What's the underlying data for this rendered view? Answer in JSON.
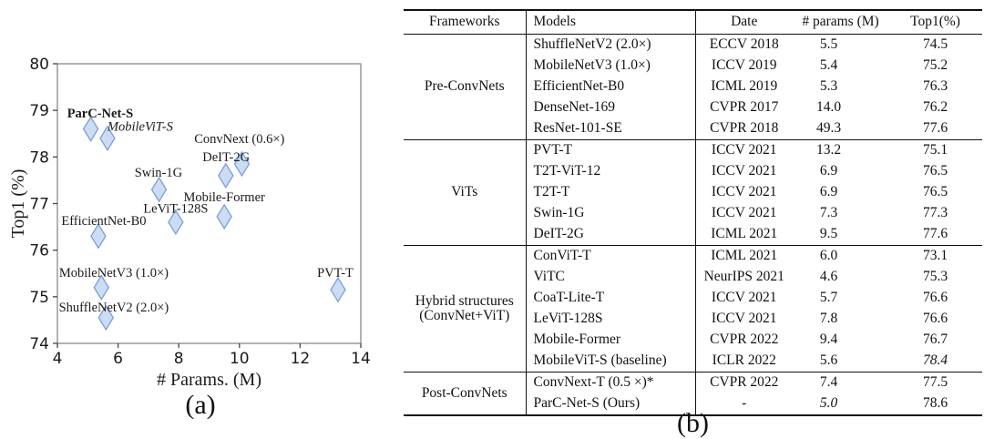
{
  "figure": {
    "caption_a": "(a)",
    "caption_b": "(b)"
  },
  "colors": {
    "marker_fill": "#ccdcf2",
    "marker_stroke": "#7b9fd4",
    "spine": "#8a8a8a",
    "tick": "#444444",
    "text": "#1a1a1a",
    "table_line": "#111111"
  },
  "chart_data": [
    {
      "type": "scatter",
      "title": "",
      "xlabel": "# Params. (M)",
      "ylabel": "Top1 (%)",
      "xlim": [
        4,
        14
      ],
      "ylim": [
        74,
        80
      ],
      "xticks": [
        4,
        6,
        8,
        10,
        12,
        14
      ],
      "yticks": [
        74,
        75,
        76,
        77,
        78,
        79,
        80
      ],
      "grid": false,
      "legend": "none",
      "marker": {
        "shape": "thin-diamond",
        "fill": "#ccdcf2",
        "stroke": "#7b9fd4"
      },
      "points": [
        {
          "label": "ParC-Net-S",
          "x": 5.1,
          "y": 78.6,
          "label_x": 5.41,
          "label_y": 78.94,
          "label_style": "bold"
        },
        {
          "label": "MobileViT-S",
          "x": 5.65,
          "y": 78.4,
          "label_x": 6.73,
          "label_y": 78.66,
          "label_style": "italic"
        },
        {
          "label": "ConvNext (0.6×)",
          "x": 10.08,
          "y": 77.85,
          "label_x": 10.0,
          "label_y": 78.4,
          "label_style": "normal"
        },
        {
          "label": "DeIT-2G",
          "x": 9.55,
          "y": 77.6,
          "label_x": 9.56,
          "label_y": 78.01,
          "label_style": "normal"
        },
        {
          "label": "Swin-1G",
          "x": 7.35,
          "y": 77.3,
          "label_x": 7.33,
          "label_y": 77.67,
          "label_style": "normal"
        },
        {
          "label": "Mobile-Former",
          "x": 9.5,
          "y": 76.72,
          "label_x": 9.5,
          "label_y": 77.15,
          "label_style": "normal"
        },
        {
          "label": "LeViT-128S",
          "x": 7.9,
          "y": 76.6,
          "label_x": 7.9,
          "label_y": 76.9,
          "label_style": "normal"
        },
        {
          "label": "EfficientNet-B0",
          "x": 5.35,
          "y": 76.3,
          "label_x": 5.53,
          "label_y": 76.64,
          "label_style": "normal"
        },
        {
          "label": "MobileNetV3 (1.0×)",
          "x": 5.45,
          "y": 75.2,
          "label_x": 5.86,
          "label_y": 75.52,
          "label_style": "normal"
        },
        {
          "label": "PVT-T",
          "x": 13.25,
          "y": 75.15,
          "label_x": 13.16,
          "label_y": 75.52,
          "label_style": "normal"
        },
        {
          "label": "ShuffleNetV2 (2.0×)",
          "x": 5.6,
          "y": 74.55,
          "label_x": 5.86,
          "label_y": 74.78,
          "label_style": "normal"
        }
      ]
    },
    {
      "type": "table",
      "headers": [
        "Frameworks",
        "Models",
        "Date",
        "# params (M)",
        "Top1(%)"
      ],
      "groups": [
        {
          "framework": [
            "Pre-ConvNets"
          ],
          "rows": [
            {
              "model": "ShuffleNetV2 (2.0×)",
              "date": "ECCV 2018",
              "params": "5.5",
              "top1": "74.5"
            },
            {
              "model": "MobileNetV3 (1.0×)",
              "date": "ICCV 2019",
              "params": "5.4",
              "top1": "75.2"
            },
            {
              "model": "EfficientNet-B0",
              "date": "ICML 2019",
              "params": "5.3",
              "top1": "76.3"
            },
            {
              "model": "DenseNet-169",
              "date": "CVPR 2017",
              "params": "14.0",
              "top1": "76.2"
            },
            {
              "model": "ResNet-101-SE",
              "date": "CVPR 2018",
              "params": "49.3",
              "top1": "77.6"
            }
          ]
        },
        {
          "framework": [
            "ViTs"
          ],
          "rows": [
            {
              "model": "PVT-T",
              "date": "ICCV 2021",
              "params": "13.2",
              "top1": "75.1"
            },
            {
              "model": "T2T-ViT-12",
              "date": "ICCV 2021",
              "params": "6.9",
              "top1": "76.5"
            },
            {
              "model": "T2T-T",
              "date": "ICCV 2021",
              "params": "6.9",
              "top1": "76.5"
            },
            {
              "model": "Swin-1G",
              "date": "ICCV 2021",
              "params": "7.3",
              "top1": "77.3"
            },
            {
              "model": "DeIT-2G",
              "date": "ICML 2021",
              "params": "9.5",
              "top1": "77.6"
            }
          ]
        },
        {
          "framework": [
            "Hybrid structures",
            "(ConvNet+ViT)"
          ],
          "rows": [
            {
              "model": "ConViT-T",
              "date": "ICML 2021",
              "params": "6.0",
              "top1": "73.1"
            },
            {
              "model": "ViTC",
              "date": "NeurIPS 2021",
              "params": "4.6",
              "params_style": "bold",
              "top1": "75.3"
            },
            {
              "model": "CoaT-Lite-T",
              "date": "ICCV 2021",
              "params": "5.7",
              "top1": "76.6"
            },
            {
              "model": "LeViT-128S",
              "date": "ICCV 2021",
              "params": "7.8",
              "top1": "76.6"
            },
            {
              "model": "Mobile-Former",
              "date": "CVPR 2022",
              "params": "9.4",
              "top1": "76.7"
            },
            {
              "model": "MobileViT-S (baseline)",
              "date": "ICLR 2022",
              "params": "5.6",
              "top1": "78.4",
              "top1_style": "italic"
            }
          ]
        },
        {
          "framework": [
            "Post-ConvNets"
          ],
          "rows": [
            {
              "model": "ConvNext-T (0.5 ×)*",
              "date": "CVPR 2022",
              "params": "7.4",
              "top1": "77.5"
            },
            {
              "model": "ParC-Net-S  (Ours)",
              "date": "-",
              "params": "5.0",
              "params_style": "italic",
              "top1": "78.6",
              "top1_style": "bold"
            }
          ]
        }
      ]
    }
  ]
}
